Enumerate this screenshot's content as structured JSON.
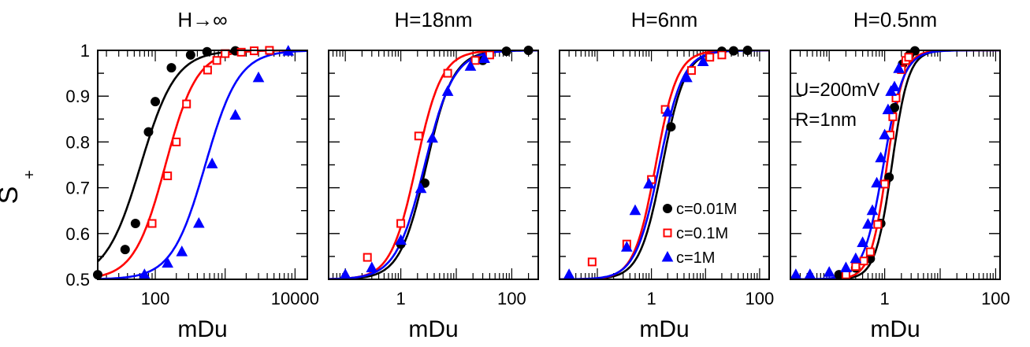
{
  "chart_data": {
    "type": "scatter",
    "ylabel_main": "S",
    "ylabel_sub": "+",
    "ylim": [
      0.5,
      1.0
    ],
    "y_ticks": [
      "0.5",
      "0.6",
      "0.7",
      "0.8",
      "0.9",
      "1"
    ],
    "x_scale": "log",
    "legend": {
      "panel": 2,
      "placement": "bottom-right",
      "entries": [
        "c=0.01M",
        "c=0.1M",
        "c=1M"
      ]
    },
    "series_style": [
      {
        "color": "#000000",
        "marker": "circle-filled"
      },
      {
        "color": "#ff0000",
        "marker": "square-open"
      },
      {
        "color": "#0000ff",
        "marker": "triangle-filled"
      }
    ],
    "panels": [
      {
        "title": "H→∞",
        "xlabel": "mDu",
        "xlim": [
          15,
          15000
        ],
        "x_tick_values": [
          100,
          10000
        ],
        "x_tick_labels": [
          "100",
          "10000"
        ],
        "annotations": [],
        "series": [
          {
            "points": [
              [
                15,
                0.51
              ],
              [
                37,
                0.565
              ],
              [
                52,
                0.622
              ],
              [
                80,
                0.822
              ],
              [
                100,
                0.888
              ],
              [
                170,
                0.962
              ],
              [
                320,
                0.99
              ],
              [
                550,
                0.997
              ],
              [
                1400,
                0.999
              ]
            ],
            "fit": {
              "x0": 62,
              "w": 0.5
            }
          },
          {
            "points": [
              [
                90,
                0.622
              ],
              [
                150,
                0.726
              ],
              [
                200,
                0.8
              ],
              [
                280,
                0.883
              ],
              [
                560,
                0.957
              ],
              [
                760,
                0.978
              ],
              [
                1000,
                0.993
              ],
              [
                1700,
                0.996
              ],
              [
                2600,
                0.999
              ],
              [
                4300,
                1.0
              ]
            ],
            "fit": {
              "x0": 140,
              "w": 0.45
            }
          },
          {
            "points": [
              [
                70,
                0.51
              ],
              [
                150,
                0.535
              ],
              [
                240,
                0.56
              ],
              [
                420,
                0.622
              ],
              [
                650,
                0.752
              ],
              [
                1400,
                0.858
              ],
              [
                3000,
                0.94
              ],
              [
                8000,
                0.998
              ]
            ],
            "fit": {
              "x0": 520,
              "w": 0.48
            }
          }
        ]
      },
      {
        "title": "H=18nm",
        "xlabel": "mDu",
        "xlim": [
          0.05,
          300
        ],
        "x_tick_values": [
          1,
          100
        ],
        "x_tick_labels": [
          "1",
          "100"
        ],
        "annotations": [],
        "series": [
          {
            "points": [
              [
                1,
                0.577
              ],
              [
                2.7,
                0.71
              ],
              [
                30,
                0.978
              ],
              [
                80,
                0.998
              ],
              [
                200,
                1.0
              ]
            ],
            "fit": {
              "x0": 2.9,
              "w": 0.48
            }
          },
          {
            "points": [
              [
                0.25,
                0.548
              ],
              [
                1,
                0.622
              ],
              [
                2.1,
                0.813
              ],
              [
                7,
                0.95
              ],
              [
                22,
                0.978
              ],
              [
                40,
                0.99
              ]
            ],
            "fit": {
              "x0": 1.9,
              "w": 0.46
            }
          },
          {
            "points": [
              [
                0.1,
                0.51
              ],
              [
                0.3,
                0.525
              ],
              [
                1,
                0.585
              ],
              [
                2.3,
                0.698
              ],
              [
                3.7,
                0.808
              ],
              [
                7,
                0.91
              ],
              [
                18,
                0.965
              ],
              [
                32,
                0.982
              ]
            ],
            "fit": {
              "x0": 2.7,
              "w": 0.52
            }
          }
        ]
      },
      {
        "title": "H=6nm",
        "xlabel": "mDu",
        "xlim": [
          0.02,
          150
        ],
        "x_tick_values": [
          1,
          100
        ],
        "x_tick_labels": [
          "1",
          "100"
        ],
        "annotations": [],
        "series": [
          {
            "points": [
              [
                2.3,
                0.833
              ],
              [
                20,
                0.998
              ],
              [
                33,
                0.999
              ],
              [
                60,
                1.0
              ]
            ],
            "fit": {
              "x0": 1.6,
              "w": 0.42
            }
          },
          {
            "points": [
              [
                0.08,
                0.538
              ],
              [
                0.35,
                0.577
              ],
              [
                1,
                0.718
              ],
              [
                1.8,
                0.871
              ],
              [
                5.5,
                0.956
              ],
              [
                12,
                0.985
              ],
              [
                20,
                0.99
              ]
            ],
            "fit": {
              "x0": 1.2,
              "w": 0.4
            }
          },
          {
            "points": [
              [
                0.03,
                0.51
              ],
              [
                0.35,
                0.57
              ],
              [
                0.5,
                0.65
              ],
              [
                0.9,
                0.708
              ],
              [
                2,
                0.865
              ],
              [
                4.5,
                0.94
              ],
              [
                9,
                0.975
              ]
            ],
            "fit": {
              "x0": 1.4,
              "w": 0.44
            }
          }
        ]
      },
      {
        "title": "H=0.5nm",
        "xlabel": "mDu",
        "xlim": [
          0.02,
          120
        ],
        "x_tick_values": [
          1,
          100
        ],
        "x_tick_labels": [
          "1",
          "100"
        ],
        "annotations": [
          "U=200mV",
          "R=1nm"
        ],
        "series": [
          {
            "points": [
              [
                0.15,
                0.51
              ],
              [
                0.3,
                0.525
              ],
              [
                0.55,
                0.545
              ],
              [
                0.85,
                0.622
              ],
              [
                1.2,
                0.723
              ],
              [
                1.5,
                0.875
              ],
              [
                2.1,
                0.97
              ],
              [
                2.8,
                0.99
              ],
              [
                3.5,
                0.999
              ]
            ],
            "fit": {
              "x0": 1.35,
              "w": 0.3
            }
          },
          {
            "points": [
              [
                0.2,
                0.51
              ],
              [
                0.3,
                0.528
              ],
              [
                0.42,
                0.54
              ],
              [
                0.55,
                0.56
              ],
              [
                0.75,
                0.62
              ],
              [
                1,
                0.708
              ],
              [
                1.25,
                0.815
              ],
              [
                1.4,
                0.855
              ],
              [
                1.6,
                0.896
              ],
              [
                2.0,
                0.958
              ],
              [
                2.4,
                0.978
              ],
              [
                2.7,
                0.985
              ]
            ],
            "fit": {
              "x0": 1.1,
              "w": 0.3
            }
          },
          {
            "points": [
              [
                0.025,
                0.51
              ],
              [
                0.045,
                0.51
              ],
              [
                0.1,
                0.515
              ],
              [
                0.2,
                0.525
              ],
              [
                0.3,
                0.545
              ],
              [
                0.4,
                0.58
              ],
              [
                0.5,
                0.62
              ],
              [
                0.6,
                0.65
              ],
              [
                0.72,
                0.71
              ],
              [
                0.85,
                0.765
              ],
              [
                1,
                0.815
              ],
              [
                1.15,
                0.87
              ],
              [
                1.3,
                0.91
              ],
              [
                1.5,
                0.92
              ],
              [
                1.8,
                0.96
              ]
            ],
            "fit": {
              "x0": 0.95,
              "w": 0.36
            }
          }
        ]
      }
    ]
  }
}
